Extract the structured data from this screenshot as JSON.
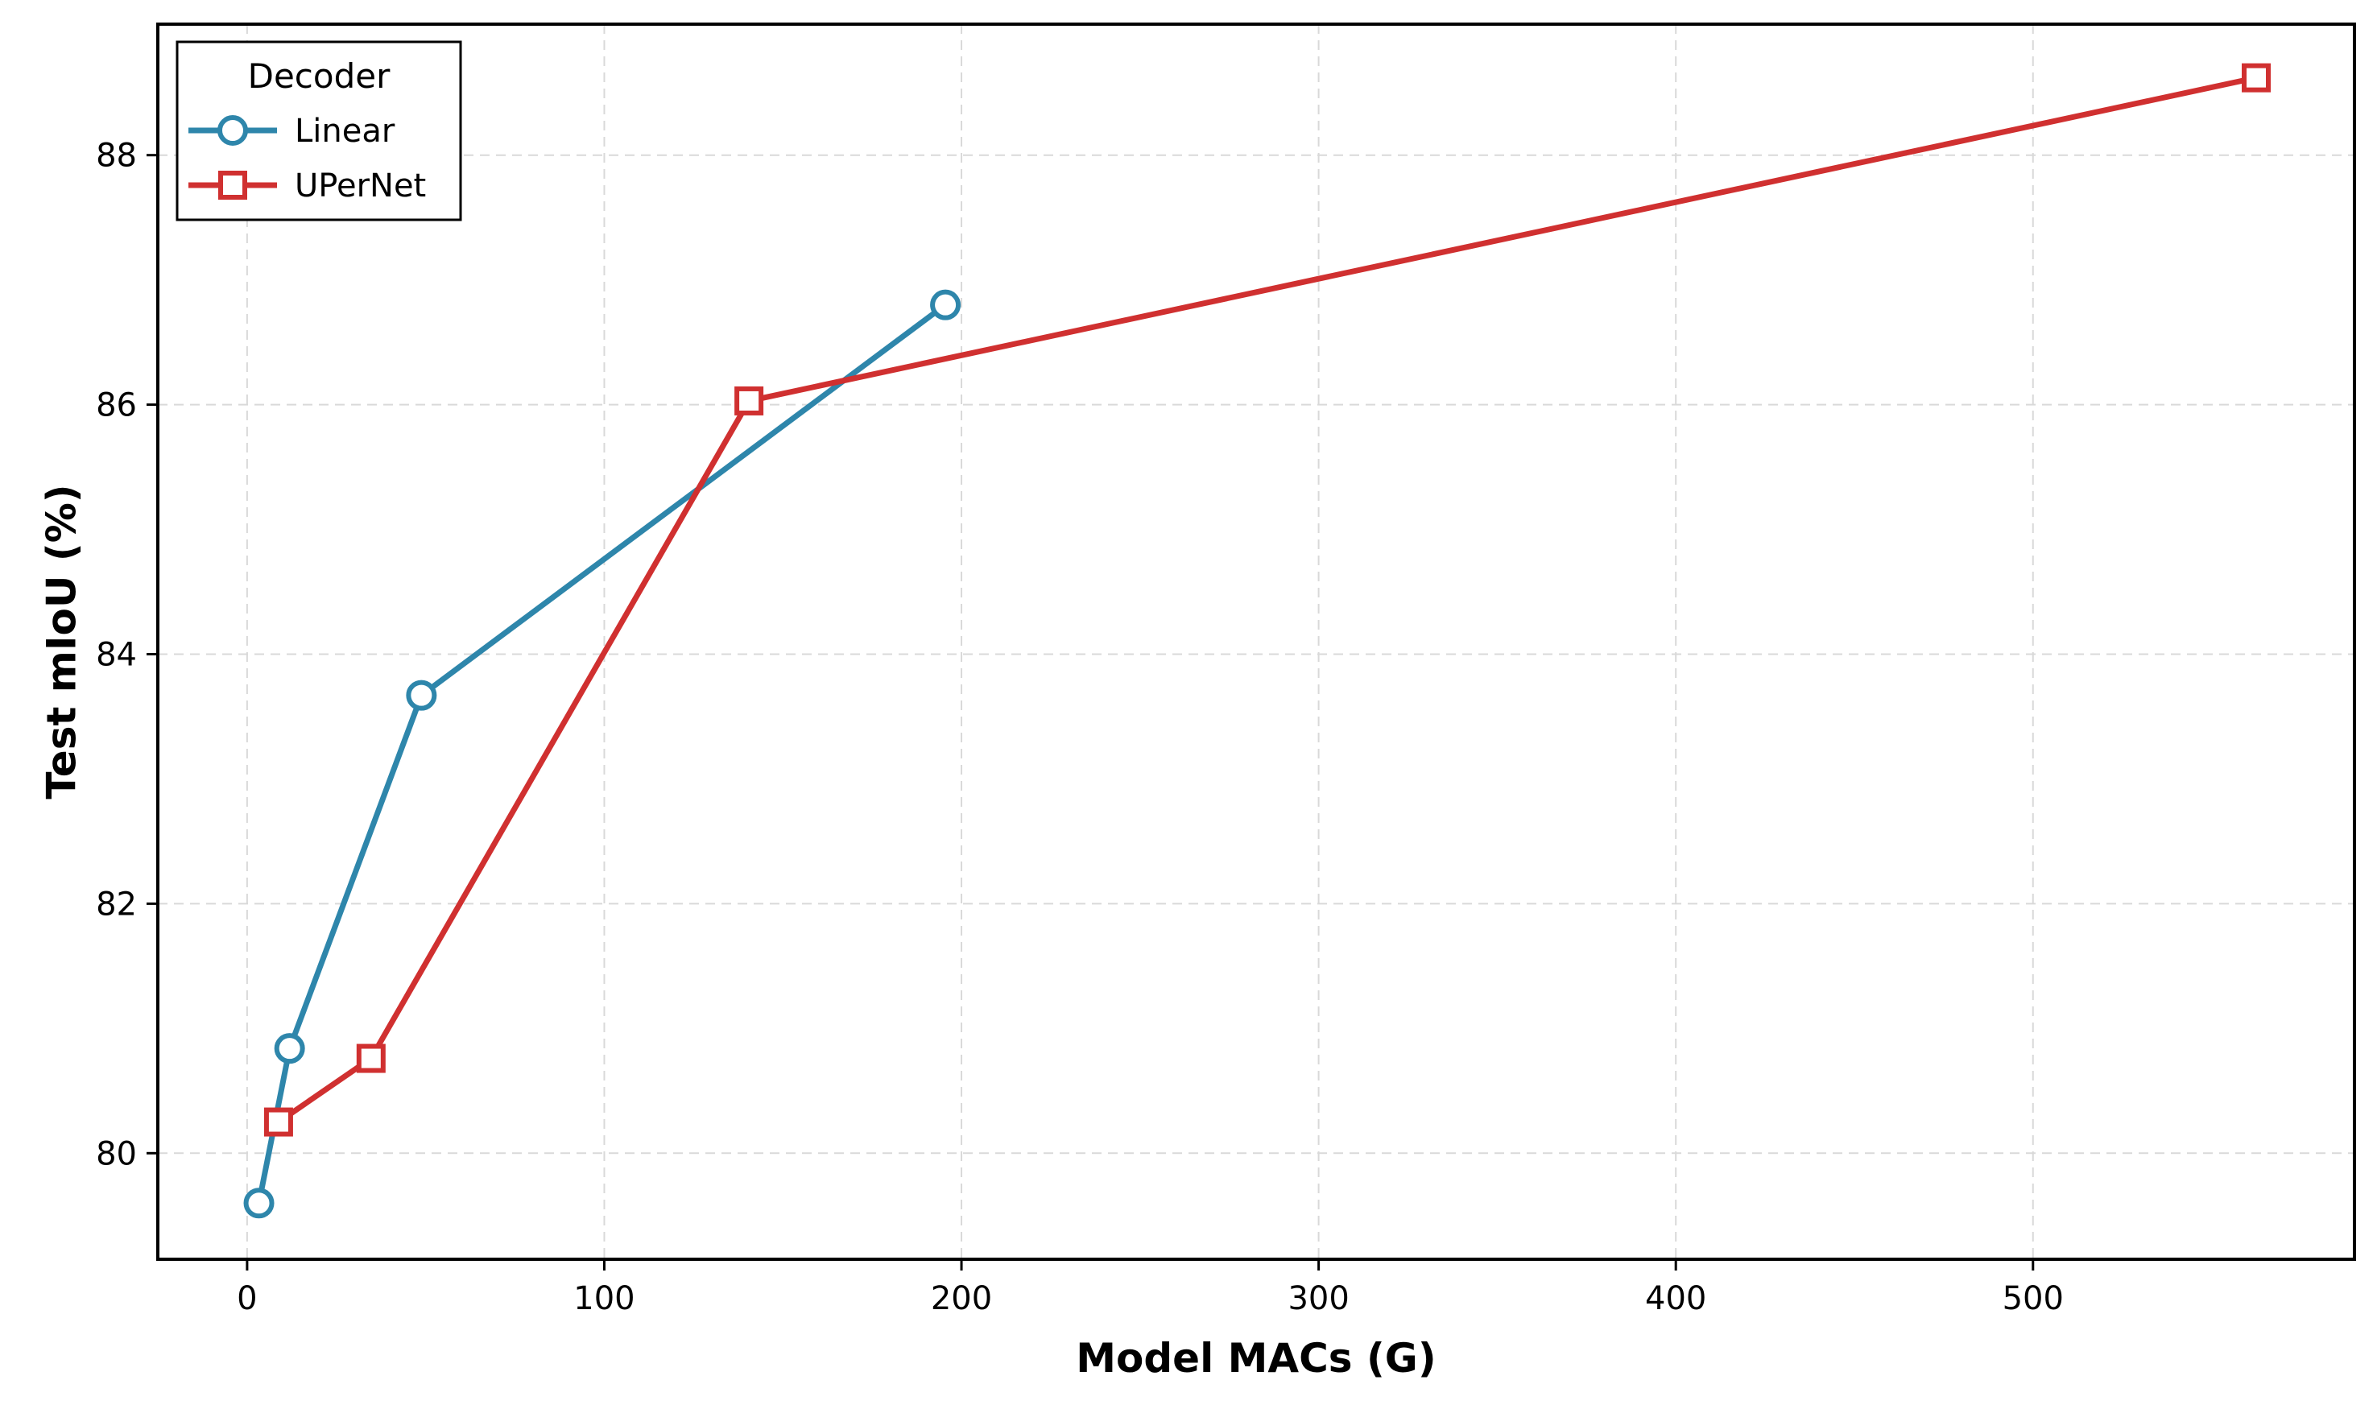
{
  "chart_data": {
    "type": "line",
    "xlabel": "Model MACs (G)",
    "ylabel": "Test mIoU (%)",
    "xlim": [
      -25,
      590
    ],
    "ylim": [
      79.15,
      89.05
    ],
    "xticks": [
      0,
      100,
      200,
      300,
      400,
      500
    ],
    "yticks": [
      80,
      82,
      84,
      86,
      88
    ],
    "grid": true,
    "legend": {
      "title": "Decoder",
      "position": "top-left"
    },
    "series": [
      {
        "name": "Linear",
        "color": "#2e86ab",
        "marker": "circle",
        "x": [
          3.3,
          11.9,
          48.8,
          195.5
        ],
        "y": [
          79.6,
          80.84,
          83.67,
          86.8
        ]
      },
      {
        "name": "UPerNet",
        "color": "#d03030",
        "marker": "square",
        "x": [
          8.8,
          34.7,
          140.5,
          562.5
        ],
        "y": [
          80.25,
          80.76,
          86.03,
          88.62
        ]
      }
    ]
  }
}
